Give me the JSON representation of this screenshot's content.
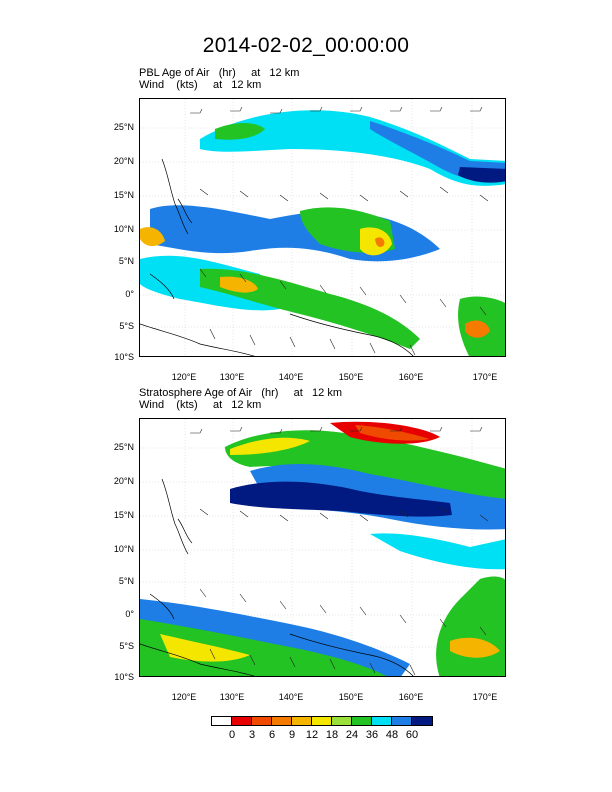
{
  "main_title": "2014-02-02_00:00:00",
  "panels": [
    {
      "id": "pbl",
      "title_line1": "PBL Age of Air   (hr)     at   12 km",
      "title_line2": "Wind    (kts)     at   12 km"
    },
    {
      "id": "strat",
      "title_line1": "Stratosphere Age of Air   (hr)     at   12 km",
      "title_line2": "Wind    (kts)     at   12 km"
    }
  ],
  "lat_labels": [
    "25°N",
    "20°N",
    "15°N",
    "10°N",
    "5°N",
    "0°",
    "5°S",
    "10°S"
  ],
  "lon_labels": [
    "120°E",
    "130°E",
    "140°E",
    "150°E",
    "160°E",
    "170°E"
  ],
  "legend": {
    "labels": [
      "0",
      "3",
      "6",
      "9",
      "12",
      "18",
      "24",
      "36",
      "48",
      "60"
    ],
    "colors": [
      "#ffffff",
      "#e60000",
      "#f04a00",
      "#f57a00",
      "#f5b400",
      "#f5e600",
      "#9be03a",
      "#22c322",
      "#00e0f5",
      "#1e7ee6",
      "#001a82"
    ]
  }
}
